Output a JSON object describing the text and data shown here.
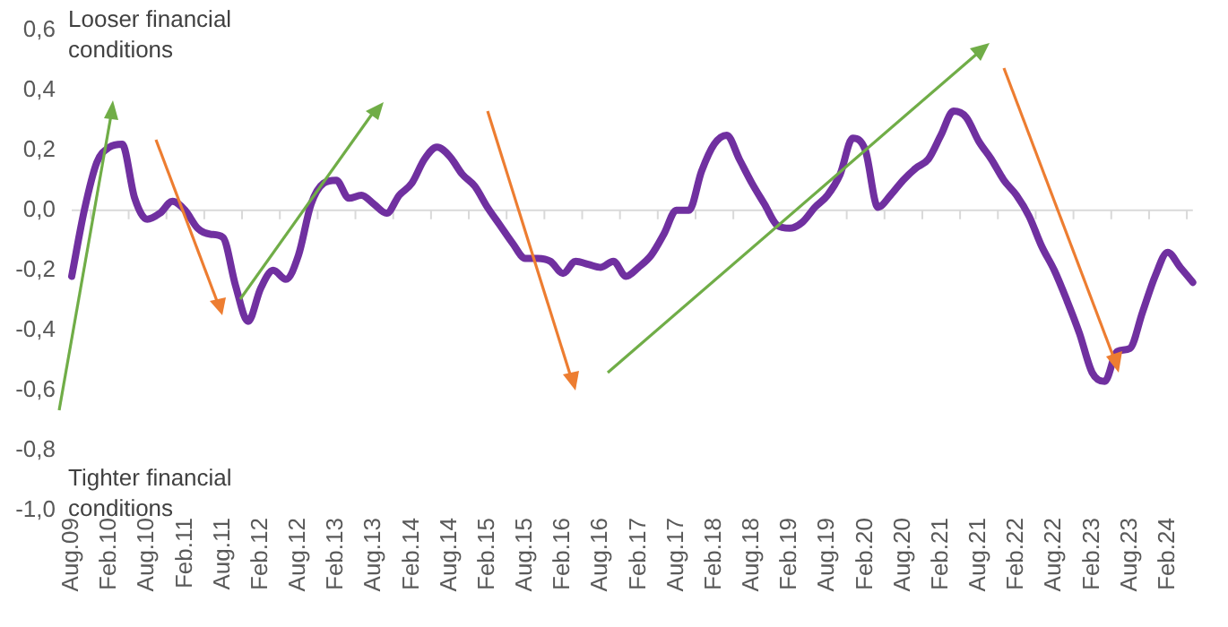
{
  "chart_data": {
    "type": "line",
    "categories": [
      "Aug.09",
      null,
      null,
      "Feb.10",
      null,
      null,
      "Aug.10",
      null,
      null,
      "Feb.11",
      null,
      null,
      "Aug.11",
      null,
      null,
      "Feb.12",
      null,
      null,
      "Aug.12",
      null,
      null,
      "Feb.13",
      null,
      null,
      "Aug.13",
      null,
      null,
      "Feb.14",
      null,
      null,
      "Aug.14",
      null,
      null,
      "Feb.15",
      null,
      null,
      "Aug.15",
      null,
      null,
      "Feb.16",
      null,
      null,
      "Aug.16",
      null,
      null,
      "Feb.17",
      null,
      null,
      "Aug.17",
      null,
      null,
      "Feb.18",
      null,
      null,
      "Aug.18",
      null,
      null,
      "Feb.19",
      null,
      null,
      "Aug.19",
      null,
      null,
      "Feb.20",
      null,
      null,
      "Aug.20",
      null,
      null,
      "Feb.21",
      null,
      null,
      "Aug.21",
      null,
      null,
      "Feb.22",
      null,
      null,
      "Aug.22",
      null,
      null,
      "Feb.23",
      null,
      null,
      "Aug.23",
      null,
      null,
      "Feb.24",
      null,
      null
    ],
    "series": [
      {
        "color": "#7030a0",
        "values": [
          -0.22,
          0.0,
          0.16,
          0.21,
          0.22,
          0.04,
          -0.03,
          -0.01,
          0.03,
          0.0,
          -0.06,
          -0.08,
          -0.09,
          -0.25,
          -0.37,
          -0.26,
          -0.2,
          -0.23,
          -0.15,
          0.02,
          0.09,
          0.1,
          0.04,
          0.05,
          0.02,
          -0.01,
          0.05,
          0.09,
          0.17,
          0.21,
          0.18,
          0.12,
          0.08,
          0.01,
          -0.05,
          -0.11,
          -0.16,
          -0.16,
          -0.17,
          -0.21,
          -0.17,
          -0.18,
          -0.19,
          -0.17,
          -0.22,
          -0.19,
          -0.15,
          -0.08,
          0.0,
          0.0,
          0.13,
          0.22,
          0.25,
          0.17,
          0.09,
          0.02,
          -0.05,
          -0.06,
          -0.04,
          0.01,
          0.05,
          0.12,
          0.24,
          0.2,
          0.01,
          0.05,
          0.1,
          0.14,
          0.17,
          0.25,
          0.33,
          0.31,
          0.23,
          0.17,
          0.1,
          0.05,
          -0.02,
          -0.12,
          -0.2,
          -0.3,
          -0.41,
          -0.54,
          -0.57,
          -0.47,
          -0.46,
          -0.34,
          -0.22,
          -0.14,
          -0.19,
          -0.24
        ]
      }
    ],
    "ylim": [
      -1.0,
      0.6
    ],
    "yticks": [
      {
        "value": -1.0,
        "label": "-1,0"
      },
      {
        "value": -0.8,
        "label": "-0,8"
      },
      {
        "value": -0.6,
        "label": "-0,6"
      },
      {
        "value": -0.4,
        "label": "-0,4"
      },
      {
        "value": -0.2,
        "label": "-0,2"
      },
      {
        "value": 0,
        "label": "0,0"
      },
      {
        "value": 0.2,
        "label": "0,2"
      },
      {
        "value": 0.4,
        "label": "0,4"
      },
      {
        "value": 0.6,
        "label": "0,6"
      }
    ],
    "grid": false,
    "ref_lines": [
      {
        "axis": "y",
        "value": 0,
        "color": "#d9d9d9"
      }
    ],
    "legend": false,
    "marker": "none",
    "line_style": "solid",
    "annotations": [
      "Looser financial conditions",
      "Tighter financial conditions"
    ]
  }
}
